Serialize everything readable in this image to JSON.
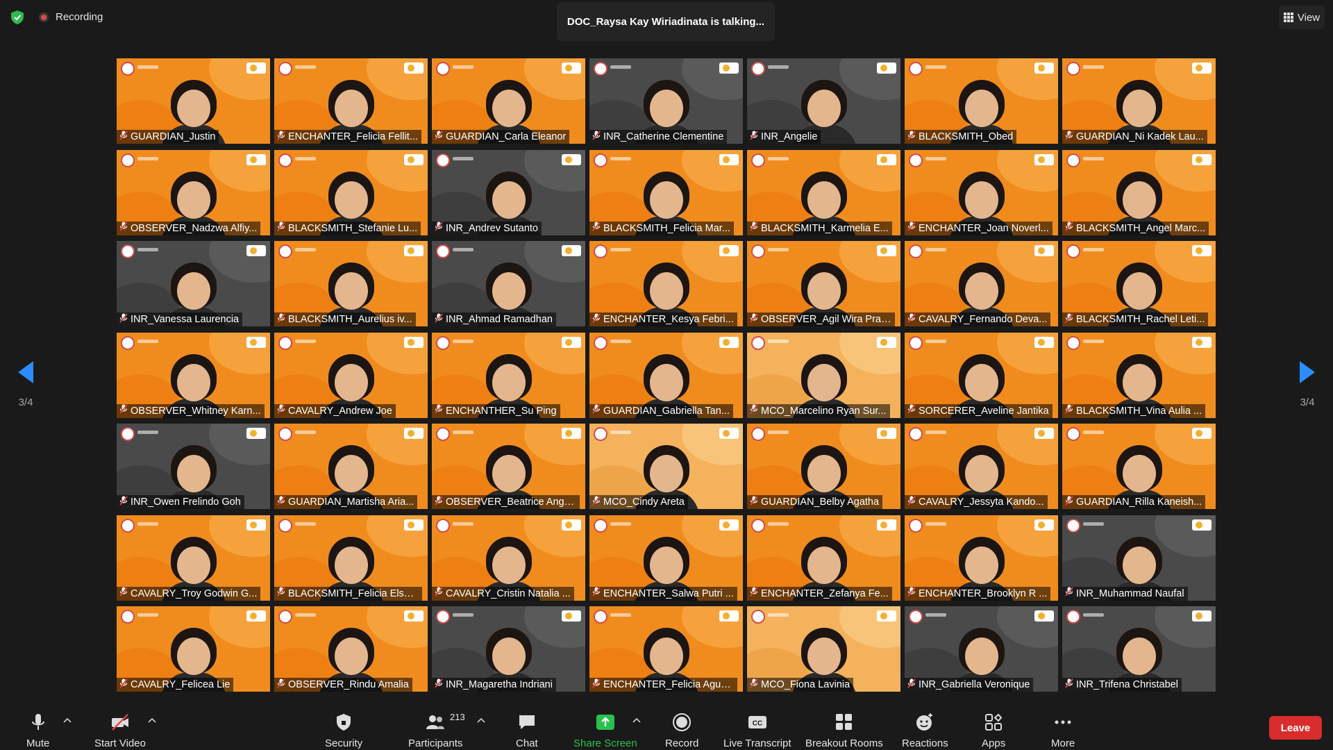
{
  "topbar": {
    "recording_label": "Recording",
    "talking_text": "DOC_Raysa Kay Wiriadinata is talking...",
    "view_label": "View",
    "shield_color": "#2fb94e"
  },
  "pagination": {
    "left": "3/4",
    "right": "3/4"
  },
  "participants": [
    "GUARDIAN_Justin",
    "ENCHANTER_Felicia Fellit...",
    "GUARDIAN_Carla Eleanor",
    "INR_Catherine Clementine",
    "INR_Angelie",
    "BLACKSMITH_Obed",
    "GUARDIAN_Ni Kadek Lau...",
    "OBSERVER_Nadzwa Alfiy...",
    "BLACKSMITH_Stefanie Lu...",
    "INR_Andrev Sutanto",
    "BLACKSMITH_Felicia Mar...",
    "BLACKSMITH_Karmelia E...",
    "ENCHANTER_Joan Noverl...",
    "BLACKSMITH_Angel Marc...",
    "INR_Vanessa Laurencia",
    "BLACKSMITH_Aurelius iv...",
    "INR_Ahmad Ramadhan",
    "ENCHANTER_Kesya Febri...",
    "OBSERVER_Agil Wira Prat...",
    "CAVALRY_Fernando Deva...",
    "BLACKSMITH_Rachel Leti...",
    "OBSERVER_Whitney Karn...",
    "CAVALRY_Andrew Joe",
    "ENCHANTHER_Su Ping",
    "GUARDIAN_Gabriella Tan...",
    "MCO_Marcelino Ryan Sur...",
    "SORCERER_Aveline Jantika",
    "BLACKSMITH_Vina Aulia ...",
    "INR_Owen Frelindo Goh",
    "GUARDIAN_Martisha Aria...",
    "OBSERVER_Beatrice Ange...",
    "MCO_Cindy Areta",
    "GUARDIAN_Belby Agatha",
    "CAVALRY_Jessyta Kando...",
    "GUARDIAN_Rilla Kaneish...",
    "CAVALRY_Troy Godwin G...",
    "BLACKSMITH_Felicia Elsa ...",
    "CAVALRY_Cristin Natalia ...",
    "ENCHANTER_Salwa Putri ...",
    "ENCHANTER_Zefanya Fe...",
    "ENCHANTER_Brooklyn R ...",
    "INR_Muhammad Naufal",
    "CAVALRY_Felicea Lie",
    "OBSERVER_Rindu Amalia",
    "INR_Magaretha Indriani",
    "ENCHANTER_Felicia Agus...",
    "MCO_Fiona Lavinia",
    "INR_Gabriella Veronique",
    "INR_Trifena Christabel"
  ],
  "toolbar": {
    "mute": "Mute",
    "start_video": "Start Video",
    "security": "Security",
    "participants": "Participants",
    "participant_count": "213",
    "chat": "Chat",
    "share_screen": "Share Screen",
    "record": "Record",
    "live_transcript": "Live Transcript",
    "breakout_rooms": "Breakout Rooms",
    "reactions": "Reactions",
    "apps": "Apps",
    "more": "More",
    "leave": "Leave",
    "share_color": "#27c24c",
    "leave_color": "#d92d2d"
  }
}
